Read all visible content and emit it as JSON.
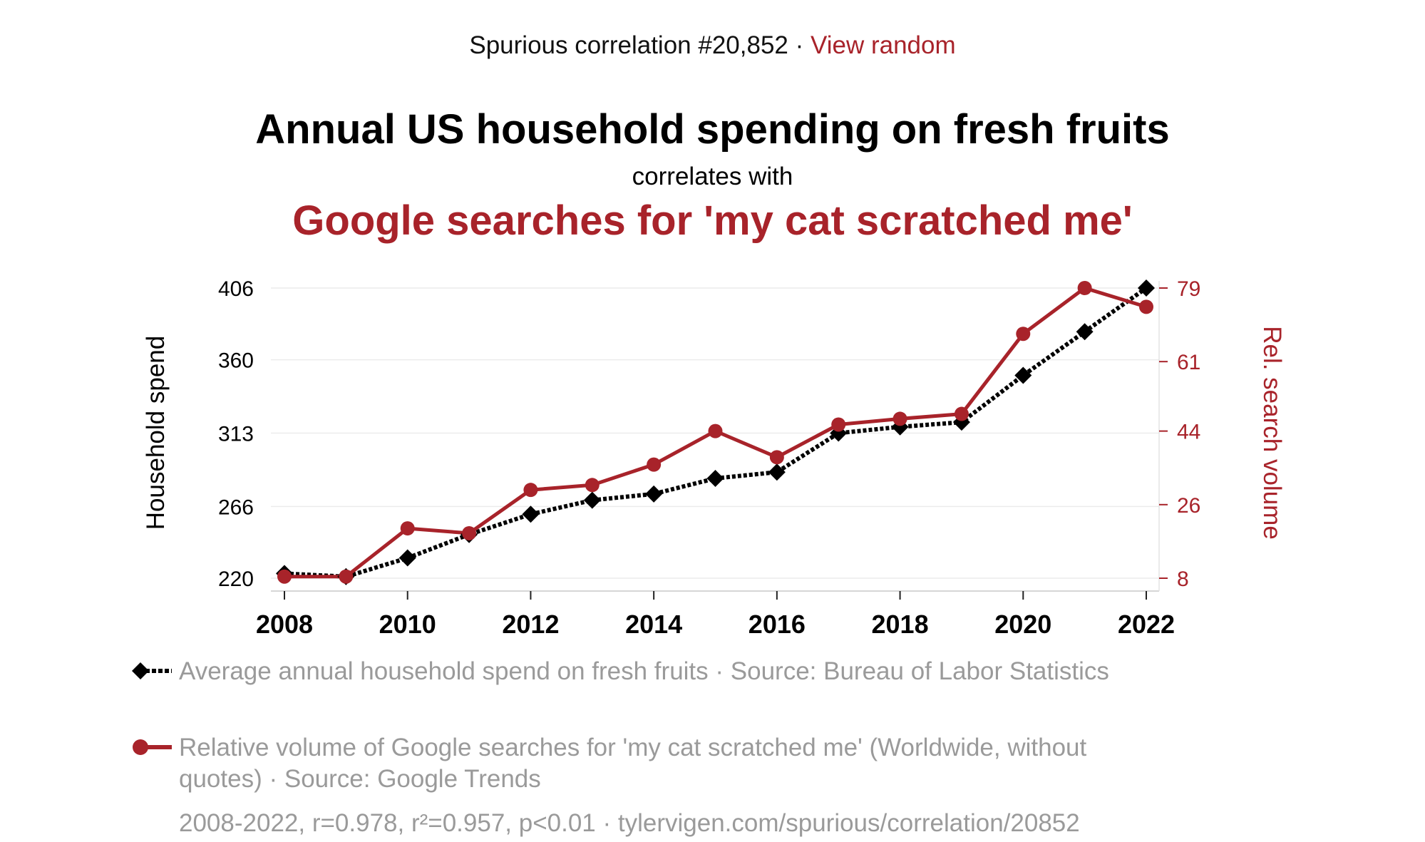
{
  "header": {
    "prefix": "Spurious correlation #20,852",
    "separator": "·",
    "link_label": "View random"
  },
  "titles": {
    "primary": "Annual US household spending on fresh fruits",
    "connector": "correlates with",
    "secondary": "Google searches for 'my cat scratched me'"
  },
  "colors": {
    "primary": "#000000",
    "secondary": "#a8232a",
    "muted": "#9a9a9a"
  },
  "chart_data": {
    "type": "line",
    "x": [
      2008,
      2009,
      2010,
      2011,
      2012,
      2013,
      2014,
      2015,
      2016,
      2017,
      2018,
      2019,
      2020,
      2021,
      2022
    ],
    "xticks": [
      "2008",
      "2010",
      "2012",
      "2014",
      "2016",
      "2018",
      "2020",
      "2022"
    ],
    "xlim": [
      2008,
      2022
    ],
    "left_axis": {
      "label": "Household spend",
      "ticks": [
        "406",
        "360",
        "313",
        "266",
        "220"
      ],
      "tick_values": [
        406,
        360,
        313,
        266,
        220
      ],
      "range": [
        220,
        406
      ]
    },
    "right_axis": {
      "label": "Rel. search volume",
      "ticks": [
        "79",
        "61",
        "44",
        "26",
        "8"
      ],
      "tick_values": [
        79,
        61,
        44,
        26,
        8
      ],
      "range": [
        8,
        79
      ]
    },
    "series": [
      {
        "name": "Average annual household spend on fresh fruits · Source: Bureau of Labor Statistics",
        "axis": "left",
        "style": "dotted-diamond",
        "color": "#000000",
        "values": [
          223,
          221,
          233,
          248,
          261,
          270,
          274,
          284,
          288,
          313,
          317,
          320,
          350,
          378,
          406
        ]
      },
      {
        "name": "Relative volume of Google searches for 'my cat scratched me' (Worldwide, without quotes) · Source: Google Trends",
        "axis": "right",
        "style": "solid-circle",
        "color": "#a8232a",
        "values": [
          8.4,
          8.4,
          20.2,
          19.0,
          29.6,
          30.8,
          35.8,
          44.0,
          37.6,
          45.6,
          47.0,
          48.2,
          67.8,
          79.0,
          74.4
        ]
      }
    ]
  },
  "legend": {
    "primary_text": "Average annual household spend on fresh fruits · Source: Bureau of Labor Statistics",
    "secondary_text": "Relative volume of Google searches for 'my cat scratched me' (Worldwide, without quotes) · Source: Google Trends"
  },
  "footer": {
    "text": "2008-2022, r=0.978, r²=0.957, p<0.01 · tylervigen.com/spurious/correlation/20852"
  }
}
